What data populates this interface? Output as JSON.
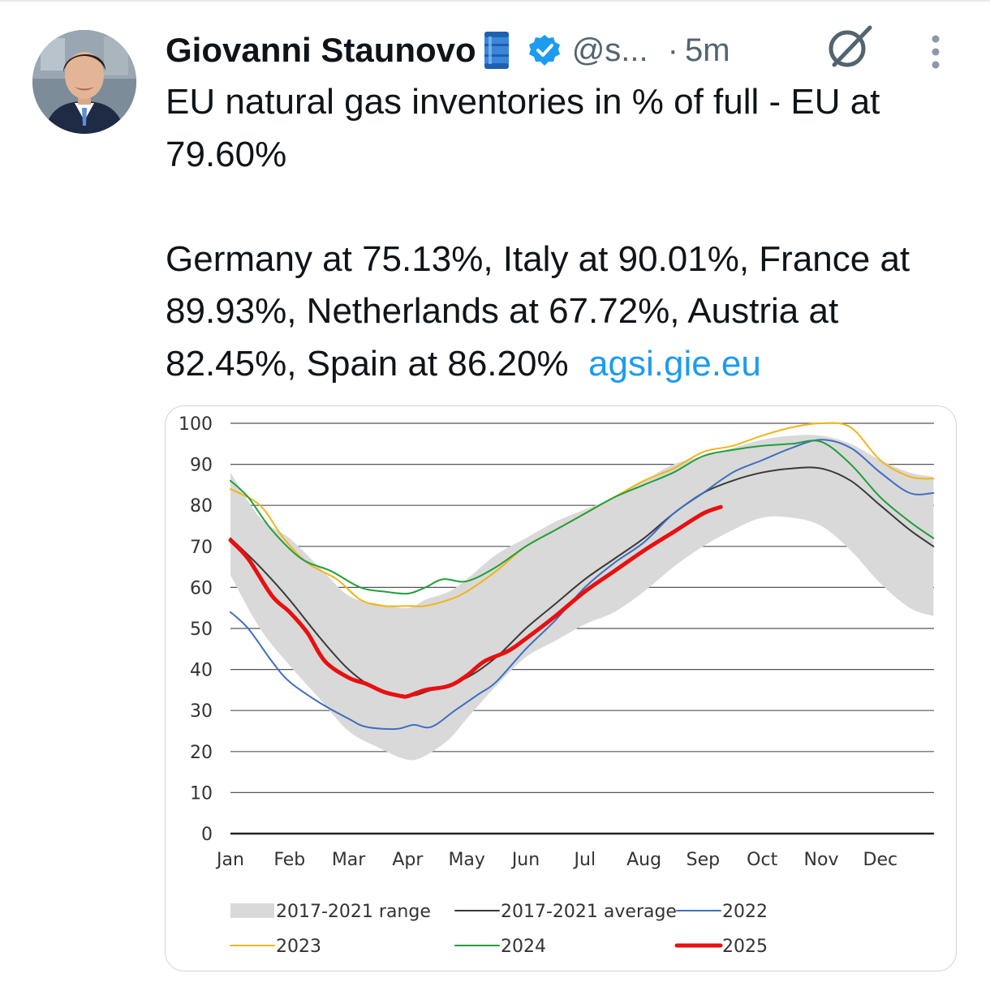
{
  "tweet": {
    "author_name": "Giovanni Staunovo",
    "handle": "@s...",
    "separator": "·",
    "time": "5m",
    "text_line1": "EU natural gas inventories in % of full - EU at 79.60%",
    "text_line2": "Germany at 75.13%, Italy at 90.01%, France at 89.93%, Netherlands at 67.72%, Austria at 82.45%, Spain at 86.20%",
    "link": "agsi.gie.eu"
  },
  "icons": {
    "emoji": "oil-barrel-icon",
    "verified": "verified-badge-icon",
    "grok": "grok-icon",
    "more": "more-options-icon"
  },
  "colors": {
    "range": "#d9d9d9",
    "average": "#3a3a3a",
    "s2022": "#3f6fbf",
    "s2023": "#f2b517",
    "s2024": "#1fa03c",
    "s2025": "#e81010",
    "link": "#1d9bf0"
  },
  "chart_data": {
    "type": "line",
    "title": "",
    "xlabel": "",
    "ylabel": "",
    "ylim": [
      0,
      100
    ],
    "yticks": [
      0,
      10,
      20,
      30,
      40,
      50,
      60,
      70,
      80,
      90,
      100
    ],
    "x_categories": [
      "Jan",
      "Feb",
      "Mar",
      "Apr",
      "May",
      "Jun",
      "Jul",
      "Aug",
      "Sep",
      "Oct",
      "Nov",
      "Dec"
    ],
    "grid": "horizontal",
    "legend": "bottom",
    "range": {
      "name": "2017-2021 range",
      "points": [
        [
          0,
          63,
          88
        ],
        [
          0.5,
          50,
          77
        ],
        [
          1,
          41,
          72
        ],
        [
          1.5,
          33,
          65
        ],
        [
          2,
          25,
          58
        ],
        [
          2.5,
          21,
          56
        ],
        [
          3,
          18,
          55
        ],
        [
          3.3,
          19,
          57
        ],
        [
          3.7,
          23,
          59
        ],
        [
          4,
          28,
          62
        ],
        [
          4.5,
          36,
          68
        ],
        [
          5,
          43,
          72
        ],
        [
          5.5,
          47,
          76
        ],
        [
          6,
          51,
          79
        ],
        [
          6.5,
          54,
          82
        ],
        [
          7,
          59,
          86
        ],
        [
          7.5,
          65,
          90
        ],
        [
          8,
          70,
          92
        ],
        [
          8.5,
          74,
          94
        ],
        [
          9,
          77,
          96
        ],
        [
          9.5,
          77,
          97
        ],
        [
          10,
          75,
          97
        ],
        [
          10.5,
          69,
          95
        ],
        [
          11,
          61,
          91
        ],
        [
          11.5,
          55,
          88
        ],
        [
          11.9,
          53,
          87
        ]
      ]
    },
    "series": [
      {
        "name": "2017-2021 average",
        "key": "avg",
        "width": 2,
        "points": [
          [
            0,
            72
          ],
          [
            0.5,
            65
          ],
          [
            1,
            57
          ],
          [
            1.5,
            48
          ],
          [
            2,
            40
          ],
          [
            2.5,
            35
          ],
          [
            3,
            33.5
          ],
          [
            3.4,
            35
          ],
          [
            4,
            38
          ],
          [
            4.5,
            43
          ],
          [
            5,
            50
          ],
          [
            5.5,
            56
          ],
          [
            6,
            62
          ],
          [
            6.5,
            67
          ],
          [
            7,
            72
          ],
          [
            7.5,
            78
          ],
          [
            8,
            83
          ],
          [
            8.5,
            86
          ],
          [
            9,
            88
          ],
          [
            9.5,
            89
          ],
          [
            10,
            89
          ],
          [
            10.5,
            86
          ],
          [
            11,
            80
          ],
          [
            11.5,
            74
          ],
          [
            11.9,
            70
          ]
        ]
      },
      {
        "name": "2022",
        "key": "s2022",
        "width": 2,
        "points": [
          [
            0,
            54
          ],
          [
            0.3,
            50
          ],
          [
            0.7,
            42
          ],
          [
            1,
            37
          ],
          [
            1.5,
            32
          ],
          [
            2,
            28
          ],
          [
            2.3,
            26
          ],
          [
            2.8,
            25.5
          ],
          [
            3.1,
            26.5
          ],
          [
            3.4,
            26
          ],
          [
            3.8,
            30
          ],
          [
            4.2,
            34
          ],
          [
            4.5,
            37
          ],
          [
            5,
            45
          ],
          [
            5.5,
            52
          ],
          [
            6,
            60
          ],
          [
            6.5,
            66
          ],
          [
            7,
            71
          ],
          [
            7.5,
            78
          ],
          [
            8,
            83
          ],
          [
            8.5,
            88
          ],
          [
            9,
            91
          ],
          [
            9.5,
            94
          ],
          [
            10,
            96
          ],
          [
            10.5,
            94
          ],
          [
            11,
            88
          ],
          [
            11.5,
            83
          ],
          [
            11.9,
            83
          ]
        ]
      },
      {
        "name": "2023",
        "key": "s2023",
        "width": 2,
        "points": [
          [
            0,
            84
          ],
          [
            0.5,
            80
          ],
          [
            0.9,
            72
          ],
          [
            1.3,
            66
          ],
          [
            1.8,
            62
          ],
          [
            2.2,
            57
          ],
          [
            2.6,
            55.5
          ],
          [
            3,
            55.5
          ],
          [
            3.3,
            55.5
          ],
          [
            3.7,
            57
          ],
          [
            4,
            59
          ],
          [
            4.5,
            64
          ],
          [
            5,
            70
          ],
          [
            5.5,
            74
          ],
          [
            6,
            78
          ],
          [
            6.5,
            82
          ],
          [
            7,
            86
          ],
          [
            7.5,
            89
          ],
          [
            8,
            93
          ],
          [
            8.5,
            94.5
          ],
          [
            9,
            97
          ],
          [
            9.5,
            99
          ],
          [
            10,
            100
          ],
          [
            10.5,
            99
          ],
          [
            11,
            91
          ],
          [
            11.5,
            87
          ],
          [
            11.9,
            86.5
          ]
        ]
      },
      {
        "name": "2024",
        "key": "s2024",
        "width": 2,
        "points": [
          [
            0,
            86
          ],
          [
            0.3,
            82
          ],
          [
            0.7,
            74
          ],
          [
            1.2,
            67
          ],
          [
            1.7,
            64
          ],
          [
            2.2,
            60
          ],
          [
            2.6,
            59
          ],
          [
            3,
            58.5
          ],
          [
            3.3,
            60
          ],
          [
            3.6,
            62
          ],
          [
            4,
            61.5
          ],
          [
            4.5,
            65
          ],
          [
            5,
            70
          ],
          [
            5.5,
            74
          ],
          [
            6,
            78
          ],
          [
            6.5,
            82
          ],
          [
            7,
            85
          ],
          [
            7.5,
            88
          ],
          [
            8,
            92
          ],
          [
            8.5,
            93.5
          ],
          [
            9,
            94.5
          ],
          [
            9.5,
            95
          ],
          [
            10,
            95.5
          ],
          [
            10.5,
            90
          ],
          [
            11,
            82
          ],
          [
            11.5,
            76
          ],
          [
            11.9,
            72
          ]
        ]
      },
      {
        "name": "2025",
        "key": "s2025",
        "width": 5,
        "points": [
          [
            0,
            71.5
          ],
          [
            0.3,
            67
          ],
          [
            0.7,
            58
          ],
          [
            1,
            54
          ],
          [
            1.3,
            49
          ],
          [
            1.6,
            42
          ],
          [
            2,
            38
          ],
          [
            2.3,
            36.5
          ],
          [
            2.6,
            34.5
          ],
          [
            2.9,
            33.5
          ],
          [
            3,
            33.5
          ],
          [
            3.3,
            35
          ],
          [
            3.7,
            36
          ],
          [
            4,
            38.5
          ],
          [
            4.3,
            42
          ],
          [
            4.7,
            44.5
          ],
          [
            5,
            47.5
          ],
          [
            5.5,
            53
          ],
          [
            6,
            59
          ],
          [
            6.5,
            64
          ],
          [
            7,
            69
          ],
          [
            7.5,
            73.5
          ],
          [
            8,
            78
          ],
          [
            8.3,
            79.6
          ]
        ]
      }
    ]
  }
}
